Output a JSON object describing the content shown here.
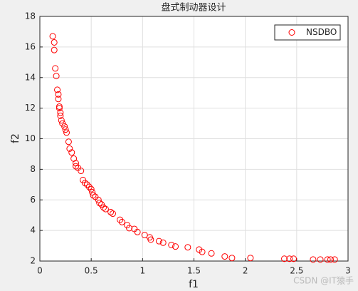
{
  "chart_data": {
    "type": "scatter",
    "title": "盘式制动器设计",
    "x_label": "f1",
    "y_label": "f2",
    "xlim": [
      0,
      3
    ],
    "ylim": [
      2,
      18
    ],
    "xticks": [
      0,
      0.5,
      1,
      1.5,
      2,
      2.5,
      3
    ],
    "yticks": [
      2,
      4,
      6,
      8,
      10,
      12,
      14,
      16,
      18
    ],
    "grid": true,
    "legend_position": "upper right",
    "series": [
      {
        "name": "NSDBO",
        "color": "#ff0000",
        "x": [
          0.125,
          0.14,
          0.14,
          0.15,
          0.16,
          0.17,
          0.18,
          0.18,
          0.19,
          0.19,
          0.2,
          0.2,
          0.21,
          0.22,
          0.24,
          0.25,
          0.26,
          0.28,
          0.29,
          0.31,
          0.33,
          0.35,
          0.35,
          0.37,
          0.4,
          0.42,
          0.44,
          0.46,
          0.48,
          0.5,
          0.51,
          0.52,
          0.54,
          0.57,
          0.58,
          0.6,
          0.62,
          0.64,
          0.69,
          0.71,
          0.78,
          0.8,
          0.85,
          0.87,
          0.92,
          0.95,
          1.02,
          1.07,
          1.08,
          1.16,
          1.2,
          1.28,
          1.32,
          1.44,
          1.55,
          1.58,
          1.67,
          1.8,
          1.87,
          2.05,
          2.38,
          2.43,
          2.47,
          2.66,
          2.73,
          2.8,
          2.83,
          2.87
        ],
        "values": [
          16.7,
          16.3,
          15.8,
          14.6,
          14.1,
          13.2,
          12.9,
          12.6,
          12.1,
          12.0,
          11.7,
          11.5,
          11.2,
          11.0,
          10.8,
          10.6,
          10.4,
          9.8,
          9.35,
          9.1,
          8.7,
          8.4,
          8.2,
          8.1,
          7.9,
          7.3,
          7.1,
          7.0,
          6.85,
          6.7,
          6.5,
          6.3,
          6.2,
          6.0,
          5.8,
          5.7,
          5.5,
          5.4,
          5.2,
          5.1,
          4.7,
          4.55,
          4.35,
          4.15,
          4.1,
          3.9,
          3.7,
          3.55,
          3.4,
          3.3,
          3.2,
          3.05,
          2.95,
          2.9,
          2.75,
          2.6,
          2.5,
          2.3,
          2.2,
          2.2,
          2.15,
          2.15,
          2.15,
          2.1,
          2.1,
          2.1,
          2.1,
          2.1
        ]
      }
    ]
  },
  "watermark": "CSDN @IT猿手"
}
